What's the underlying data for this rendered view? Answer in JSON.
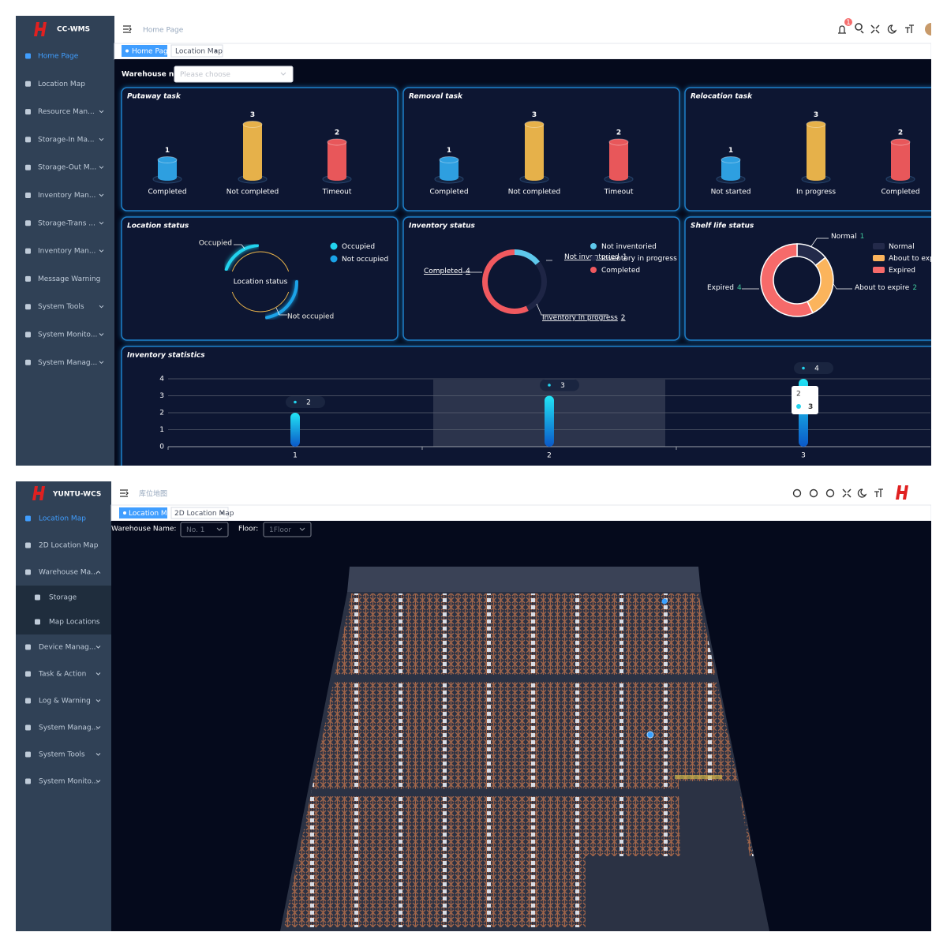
{
  "top": {
    "brand": "CC-WMS",
    "menu": [
      "Home Page",
      "Location Map",
      "Resource Man...",
      "Storage-In Ma...",
      "Storage-Out M...",
      "Inventory Man...",
      "Storage-Trans ...",
      "Inventory Man...",
      "Message Warning",
      "System Tools",
      "System Monito...",
      "System Manag..."
    ],
    "breadcrumb": "Home Page",
    "notification_count": 1,
    "tabs": [
      "Home Page",
      "Location Map"
    ],
    "filter": {
      "label": "Warehouse name:",
      "placeholder": "Please choose"
    },
    "panels": [
      {
        "type": "cylinder",
        "title": "Putaway task",
        "categories": [
          "Completed",
          "Not completed",
          "Timeout"
        ],
        "values": [
          1,
          3,
          2
        ],
        "colors": [
          "#2e9fe0",
          "#e6b14a",
          "#e8575a"
        ]
      },
      {
        "type": "cylinder",
        "title": "Removal task",
        "categories": [
          "Completed",
          "Not completed",
          "Timeout"
        ],
        "values": [
          1,
          3,
          2
        ],
        "colors": [
          "#2e9fe0",
          "#e6b14a",
          "#e8575a"
        ]
      },
      {
        "type": "cylinder",
        "title": "Relocation task",
        "categories": [
          "Not started",
          "In progress",
          "Completed"
        ],
        "values": [
          1,
          3,
          2
        ],
        "colors": [
          "#2e9fe0",
          "#e6b14a",
          "#e8575a"
        ]
      },
      {
        "type": "gauge",
        "title": "Location status",
        "center_label": "Location status",
        "labels": [
          "Occupied",
          "Not occupied"
        ],
        "colors": [
          "#22d3ee",
          "#1aa3e8"
        ]
      },
      {
        "type": "donut",
        "title": "Inventory status",
        "categories": [
          "Not inventoried",
          "Inventory in progress",
          "Completed"
        ],
        "values": [
          1,
          2,
          4
        ],
        "colors": [
          "#5ec8ec",
          "#1e2545",
          "#f0595f"
        ]
      },
      {
        "type": "donut",
        "title": "Shelf life status",
        "categories": [
          "Normal",
          "About to expire",
          "Expired"
        ],
        "values": [
          1,
          2,
          4
        ],
        "colors": [
          "#232a4a",
          "#fbb45c",
          "#f66a6a"
        ]
      },
      {
        "type": "bar",
        "title": "Inventory statistics",
        "categories": [
          "1",
          "2",
          "3"
        ],
        "values": [
          2,
          3,
          4
        ],
        "ylim": [
          0,
          4
        ],
        "yticks": [
          0,
          1,
          2,
          3,
          4
        ],
        "grid": true,
        "highlight": "2"
      }
    ]
  },
  "bottom": {
    "brand": "YUNTU-WCS",
    "menu": [
      "Location Map",
      "2D Location Map",
      "Warehouse Ma...",
      "Storage",
      "Map Locations",
      "Device Manag...",
      "Task & Action",
      "Log & Warning",
      "System Manag...",
      "System Tools",
      "System Monito..."
    ],
    "breadcrumb": "库位地图",
    "tabs": [
      "Location Map",
      "2D Location Map"
    ],
    "filters": [
      {
        "label": "Warehouse Name:",
        "value": "No. 1"
      },
      {
        "label": "Floor:",
        "value": "1Floor"
      }
    ]
  }
}
